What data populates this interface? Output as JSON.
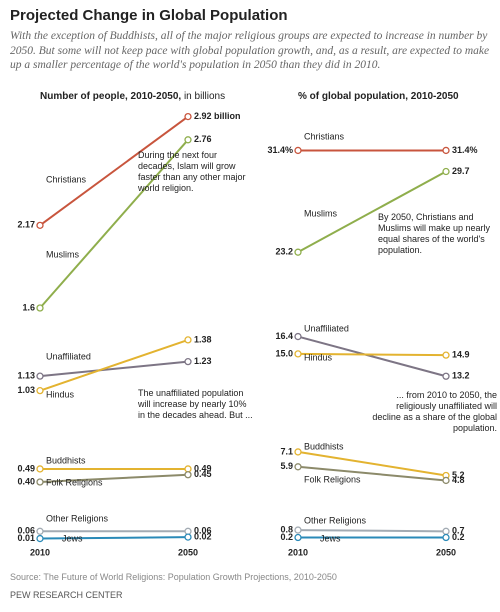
{
  "header": {
    "title": "Projected Change in Global Population",
    "subtitle": "With the exception of Buddhists, all of the major religious groups are expected to increase in number by 2050. But some will not keep pace with global population growth, and, as a result, are expected to make up a smaller percentage of the world's population in 2050 than they did in 2010."
  },
  "chart_data": [
    {
      "type": "line",
      "title": "Number of people, 2010-2050,",
      "unit": "in billions",
      "x": [
        2010,
        2050
      ],
      "xlim": [
        2010,
        2050
      ],
      "ylim": [
        0,
        3
      ],
      "series": [
        {
          "name": "Christians",
          "color": "#c8553d",
          "values": [
            2.17,
            2.92
          ],
          "value_labels": [
            "2.17",
            "2.92 billion"
          ]
        },
        {
          "name": "Muslims",
          "color": "#8fae4c",
          "values": [
            1.6,
            2.76
          ],
          "value_labels": [
            "1.6",
            "2.76"
          ]
        },
        {
          "name": "Unaffiliated",
          "color": "#7d7585",
          "values": [
            1.13,
            1.23
          ],
          "value_labels": [
            "1.13",
            "1.23"
          ]
        },
        {
          "name": "Hindus",
          "color": "#e3b330",
          "values": [
            1.03,
            1.38
          ],
          "value_labels": [
            "1.03",
            "1.38"
          ]
        },
        {
          "name": "Buddhists",
          "color": "#e3b330",
          "values": [
            0.49,
            0.49
          ],
          "value_labels": [
            "0.49",
            "0.49"
          ]
        },
        {
          "name": "Folk Religions",
          "color": "#8c8a6a",
          "values": [
            0.4,
            0.45
          ],
          "value_labels": [
            "0.40",
            "0.45"
          ]
        },
        {
          "name": "Other Religions",
          "color": "#a3abb3",
          "values": [
            0.06,
            0.06
          ],
          "value_labels": [
            "0.06",
            "0.06"
          ]
        },
        {
          "name": "Jews",
          "color": "#2a8ab8",
          "values": [
            0.01,
            0.02
          ],
          "value_labels": [
            "0.01",
            "0.02"
          ]
        }
      ],
      "annotations": [
        "During the next four decades, Islam will grow faster than any other major world religion.",
        "The unaffiliated population will increase by nearly 10% in the decades ahead. But ..."
      ]
    },
    {
      "type": "line",
      "title": "% of global population, 2010-2050",
      "x": [
        2010,
        2050
      ],
      "xlim": [
        2010,
        2050
      ],
      "ylim": [
        0,
        32
      ],
      "series": [
        {
          "name": "Christians",
          "color": "#c8553d",
          "values": [
            31.4,
            31.4
          ],
          "value_labels": [
            "31.4%",
            "31.4%"
          ]
        },
        {
          "name": "Muslims",
          "color": "#8fae4c",
          "values": [
            23.2,
            29.7
          ],
          "value_labels": [
            "23.2",
            "29.7"
          ]
        },
        {
          "name": "Unaffiliated",
          "color": "#7d7585",
          "values": [
            16.4,
            13.2
          ],
          "value_labels": [
            "16.4",
            "13.2"
          ]
        },
        {
          "name": "Hindus",
          "color": "#e3b330",
          "values": [
            15.0,
            14.9
          ],
          "value_labels": [
            "15.0",
            "14.9"
          ]
        },
        {
          "name": "Buddhists",
          "color": "#e3b330",
          "values": [
            7.1,
            5.2
          ],
          "value_labels": [
            "7.1",
            "5.2"
          ]
        },
        {
          "name": "Folk Religions",
          "color": "#8c8a6a",
          "values": [
            5.9,
            4.8
          ],
          "value_labels": [
            "5.9",
            "4.8"
          ]
        },
        {
          "name": "Other Religions",
          "color": "#a3abb3",
          "values": [
            0.8,
            0.7
          ],
          "value_labels": [
            "0.8",
            "0.7"
          ]
        },
        {
          "name": "Jews",
          "color": "#2a8ab8",
          "values": [
            0.2,
            0.2
          ],
          "value_labels": [
            "0.2",
            "0.2"
          ]
        }
      ],
      "annotations": [
        "By 2050, Christians and Muslims will make up nearly equal shares of the world's population.",
        "... from 2010 to 2050, the religiously unaffiliated will decline as a share of the global population."
      ]
    }
  ],
  "footer": {
    "source": "Source: The Future of World Religions: Population Growth Projections, 2010-2050",
    "org": "PEW RESEARCH CENTER"
  }
}
